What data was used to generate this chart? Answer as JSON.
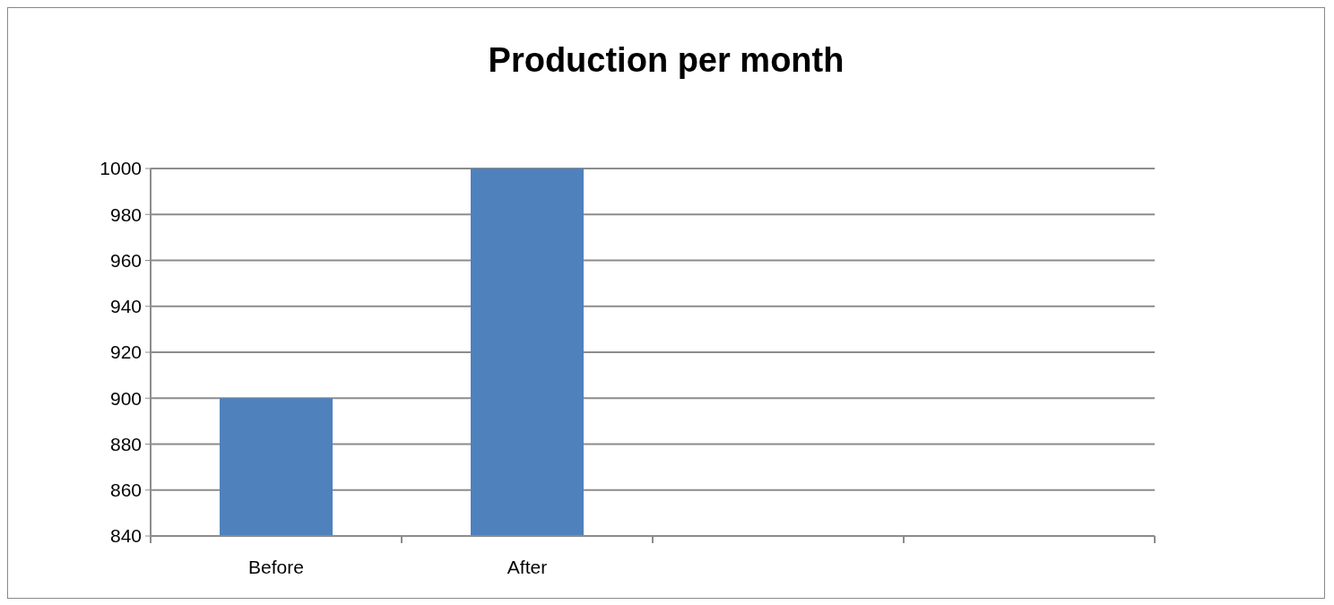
{
  "chart_data": {
    "type": "bar",
    "title": "Production per month",
    "categories": [
      "Before",
      "After",
      null,
      null
    ],
    "values": [
      900,
      1000,
      null,
      null
    ],
    "color": "#4f81bd",
    "ylim": [
      840,
      1000
    ],
    "yticks": [
      840,
      860,
      880,
      900,
      920,
      940,
      960,
      980,
      1000
    ],
    "grid": "y"
  }
}
